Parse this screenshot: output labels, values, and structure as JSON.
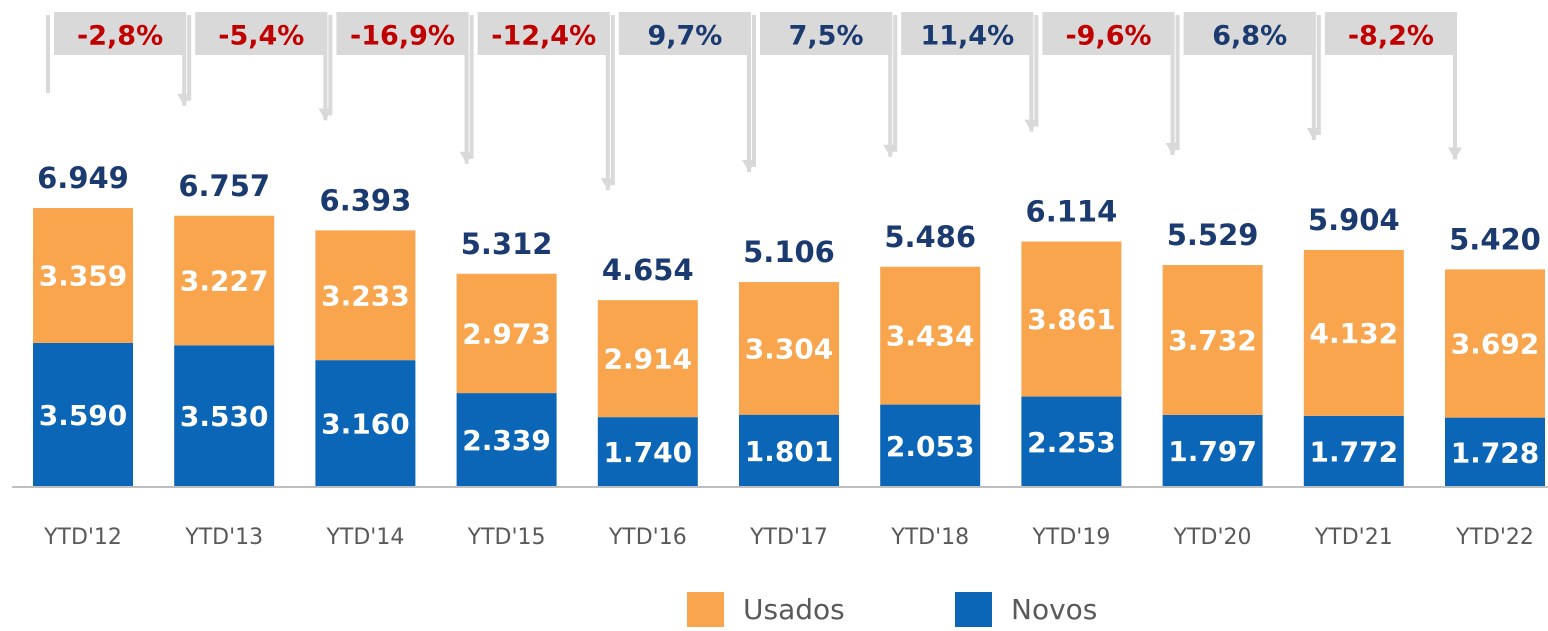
{
  "chart_data": {
    "type": "stacked_bar",
    "categories": [
      "YTD'12",
      "YTD'13",
      "YTD'14",
      "YTD'15",
      "YTD'16",
      "YTD'17",
      "YTD'18",
      "YTD'19",
      "YTD'20",
      "YTD'21",
      "YTD'22"
    ],
    "series": [
      {
        "name": "Usados",
        "color": "#f9a54d",
        "values": [
          3359,
          3227,
          3233,
          2973,
          2914,
          3304,
          3434,
          3861,
          3732,
          4132,
          3692
        ],
        "value_labels": [
          "3.359",
          "3.227",
          "3.233",
          "2.973",
          "2.914",
          "3.304",
          "3.434",
          "3.861",
          "3.732",
          "4.132",
          "3.692"
        ]
      },
      {
        "name": "Novos",
        "color": "#0b66b8",
        "values": [
          3590,
          3530,
          3160,
          2339,
          1740,
          1801,
          2053,
          2253,
          1797,
          1772,
          1728
        ],
        "value_labels": [
          "3.590",
          "3.530",
          "3.160",
          "2.339",
          "1.740",
          "1.801",
          "2.053",
          "2.253",
          "1.797",
          "1.772",
          "1.728"
        ]
      }
    ],
    "totals": {
      "values": [
        6949,
        6757,
        6393,
        5312,
        4654,
        5106,
        5486,
        6114,
        5529,
        5904,
        5420
      ],
      "value_labels": [
        "6.949",
        "6.757",
        "6.393",
        "5.312",
        "4.654",
        "5.106",
        "5.486",
        "6.114",
        "5.529",
        "5.904",
        "5.420"
      ],
      "color": "#1b3a6f"
    },
    "changes": {
      "values": [
        -2.8,
        -5.4,
        -16.9,
        -12.4,
        9.7,
        7.5,
        11.4,
        -9.6,
        6.8,
        -8.2
      ],
      "value_labels": [
        "-2,8%",
        "-5,4%",
        "-16,9%",
        "-12,4%",
        "9,7%",
        "7,5%",
        "11,4%",
        "-9,6%",
        "6,8%",
        "-8,2%"
      ],
      "positive_color": "#1b3a6f",
      "negative_color": "#c00000"
    },
    "ylim": [
      0,
      7000
    ],
    "legend": "bottom"
  }
}
